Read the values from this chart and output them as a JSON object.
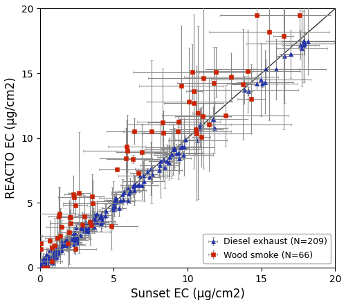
{
  "title": "",
  "xlabel": "Sunset EC (μg/cm2)",
  "ylabel": "REACTO EC (μg/cm2)",
  "xlim": [
    0,
    20
  ],
  "ylim": [
    0,
    20
  ],
  "xticks": [
    0,
    5,
    10,
    15,
    20
  ],
  "yticks": [
    0,
    5,
    10,
    15,
    20
  ],
  "diesel_color": "#2233aa",
  "wood_color": "#cc2200",
  "errorbar_color": "#888888",
  "line_color": "#333333",
  "legend_label_diesel": "Diesel exhaust (N=209)",
  "legend_label_wood": "Wood smoke (N=66)",
  "figsize": [
    5.0,
    4.41
  ],
  "dpi": 100,
  "seed": 42,
  "n_diesel": 209,
  "n_wood": 66
}
